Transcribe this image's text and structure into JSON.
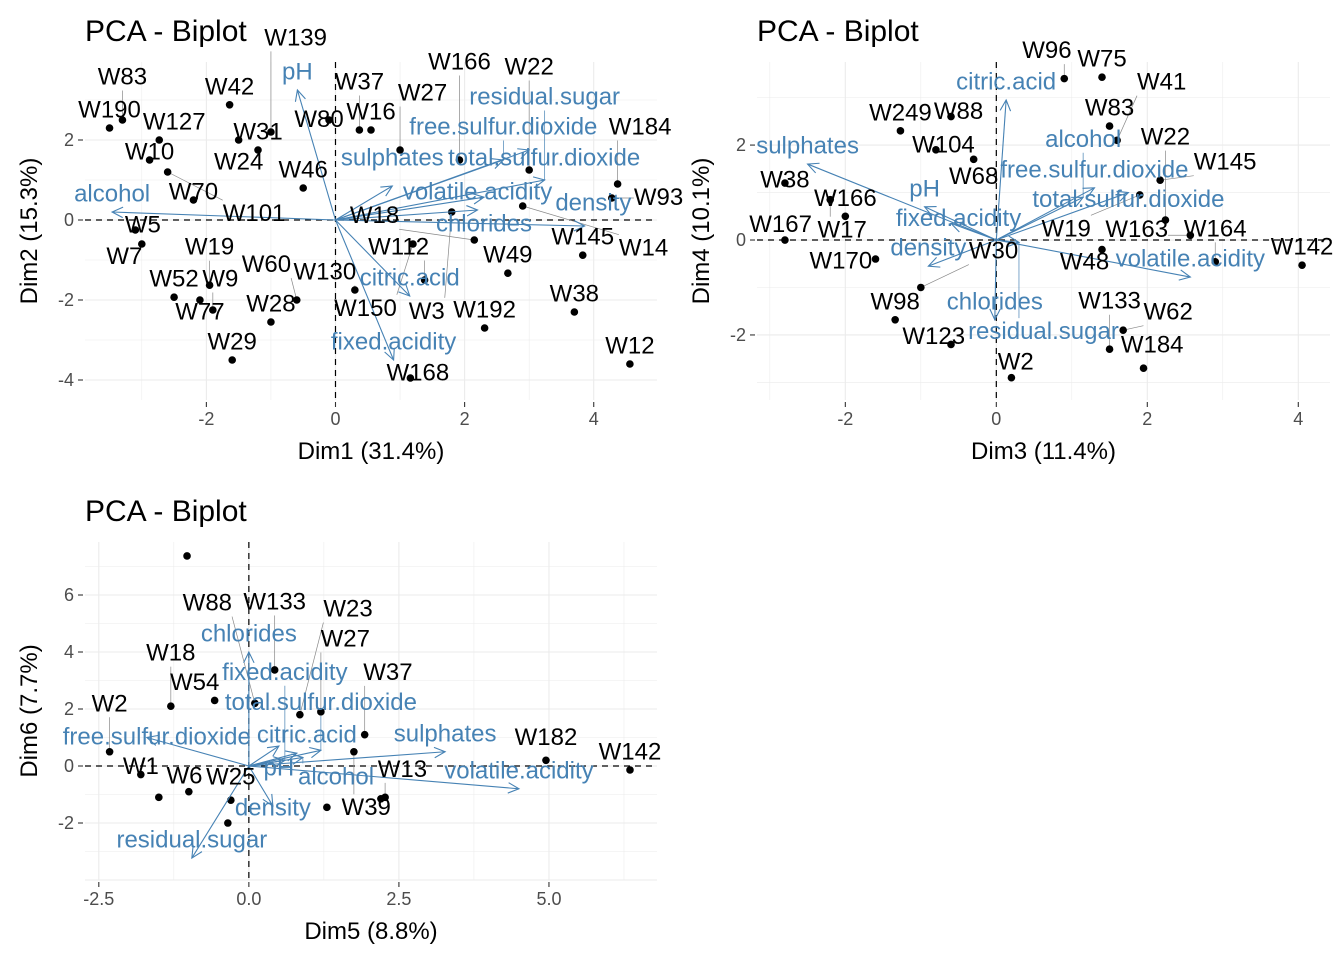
{
  "colors": {
    "points": "#000000",
    "arrows": "#4682B4",
    "grid": "#EBEBEB",
    "ticks": "#4D4D4D"
  },
  "chart_data": [
    {
      "type": "scatter",
      "title": "PCA - Biplot",
      "xlabel": "Dim1 (31.4%)",
      "ylabel": "Dim2 (15.3%)",
      "xlim": [
        -3.88,
        4.98
      ],
      "ylim": [
        -4.5,
        3.95
      ],
      "xticks": [
        {
          "v": -2,
          "label": "-2"
        },
        {
          "v": 0,
          "label": "0"
        },
        {
          "v": 2,
          "label": "2"
        },
        {
          "v": 4,
          "label": "4"
        }
      ],
      "yticks": [
        {
          "v": -4,
          "label": "-4"
        },
        {
          "v": -2,
          "label": "-2"
        },
        {
          "v": 0,
          "label": "0"
        },
        {
          "v": 2,
          "label": "2"
        }
      ],
      "grid": true,
      "points": [
        {
          "label": "W12",
          "x": 4.56,
          "y": -3.6
        },
        {
          "label": "W38",
          "x": 3.7,
          "y": -2.3
        },
        {
          "label": "W192",
          "x": 2.31,
          "y": -2.7
        },
        {
          "label": "W168",
          "x": 1.16,
          "y": -3.95
        },
        {
          "label": "W49",
          "x": 2.67,
          "y": -1.33
        },
        {
          "label": "W145",
          "x": 3.83,
          "y": -0.88
        },
        {
          "label": "W93",
          "x": 4.28,
          "y": 0.55
        },
        {
          "label": "W184",
          "x": 4.37,
          "y": 0.9
        },
        {
          "label": "W112",
          "x": 1.38,
          "y": -1.5
        },
        {
          "label": "W130",
          "x": 0.3,
          "y": -1.75
        },
        {
          "label": "W29",
          "x": -1.6,
          "y": -3.5
        },
        {
          "label": "W28",
          "x": -1.0,
          "y": -2.55
        },
        {
          "label": "W52",
          "x": -2.5,
          "y": -1.93
        },
        {
          "label": "W19",
          "x": -1.95,
          "y": -1.63
        },
        {
          "label": "W16",
          "x": 0.55,
          "y": 2.25
        },
        {
          "label": "W42",
          "x": -1.64,
          "y": 2.88
        },
        {
          "label": "W190",
          "x": -3.5,
          "y": 2.3
        },
        {
          "label": "W83",
          "x": -3.3,
          "y": 2.5
        },
        {
          "label": "W127",
          "x": -2.73,
          "y": 2.0
        },
        {
          "label": "W27",
          "x": 1.0,
          "y": 1.75
        },
        {
          "label": "W166",
          "x": 1.92,
          "y": 1.5
        },
        {
          "label": "W22",
          "x": 3.0,
          "y": 1.25
        },
        {
          "label": "W10",
          "x": -2.88,
          "y": 1.5
        },
        {
          "label": "W5",
          "x": -3.1,
          "y": -0.25
        },
        {
          "label": "W7",
          "x": -3.0,
          "y": -0.6
        },
        {
          "label": "W77",
          "x": -2.1,
          "y": -2.0
        },
        {
          "label": "W9",
          "x": -1.9,
          "y": -2.25
        },
        {
          "label": "W37",
          "x": 0.37,
          "y": 2.25
        },
        {
          "label": "W80",
          "x": -0.1,
          "y": 2.5
        },
        {
          "label": "W31",
          "x": -1.2,
          "y": 1.75
        },
        {
          "label": "W18",
          "x": 2.15,
          "y": -0.5
        },
        {
          "label": "W24",
          "x": -1.5,
          "y": 2.0
        },
        {
          "label": "W60",
          "x": -0.6,
          "y": -2.0
        },
        {
          "label": "W3",
          "x": 1.8,
          "y": 0.2
        },
        {
          "label": "W14",
          "x": 2.9,
          "y": 0.35
        },
        {
          "label": "W46",
          "x": -0.5,
          "y": 0.8
        },
        {
          "label": "W70",
          "x": -2.2,
          "y": 0.5
        },
        {
          "label": "W101",
          "x": -2.6,
          "y": 1.2
        },
        {
          "label": "W139",
          "x": -1.0,
          "y": 2.2
        },
        {
          "label": "W150",
          "x": 1.2,
          "y": -0.6
        }
      ],
      "arrows": [
        {
          "label": "pH",
          "x": -0.59,
          "y": 3.25
        },
        {
          "label": "alcohol",
          "x": -3.46,
          "y": 0.2
        },
        {
          "label": "volatile.acidity",
          "x": 2.2,
          "y": 0.25
        },
        {
          "label": "sulphates",
          "x": 0.88,
          "y": 0.85
        },
        {
          "label": "free.sulfur.dioxide",
          "x": 2.6,
          "y": 1.5
        },
        {
          "label": "total.sulfur.dioxide",
          "x": 3.0,
          "y": 1.75
        },
        {
          "label": "residual.sugar",
          "x": 3.24,
          "y": 1.0
        },
        {
          "label": "chlorides",
          "x": 2.3,
          "y": 0.57
        },
        {
          "label": "density",
          "x": 3.86,
          "y": -0.15
        },
        {
          "label": "citric.acid",
          "x": 1.15,
          "y": -1.9
        },
        {
          "label": "fixed.acidity",
          "x": 0.9,
          "y": -3.5
        }
      ]
    },
    {
      "type": "scatter",
      "title": "PCA - Biplot",
      "xlabel": "Dim3 (11.4%)",
      "ylabel": "Dim4 (10.1%)",
      "xlim": [
        -3.17,
        4.42
      ],
      "ylim": [
        -3.37,
        3.75
      ],
      "xticks": [
        {
          "v": -2,
          "label": "-2"
        },
        {
          "v": 0,
          "label": "0"
        },
        {
          "v": 2,
          "label": "2"
        },
        {
          "v": 4,
          "label": "4"
        }
      ],
      "yticks": [
        {
          "v": -2,
          "label": "-2"
        },
        {
          "v": 0,
          "label": "0"
        },
        {
          "v": 2,
          "label": "2"
        }
      ],
      "grid": true,
      "points": [
        {
          "label": "W142",
          "x": 4.05,
          "y": -0.53
        },
        {
          "label": "W164",
          "x": 2.9,
          "y": -0.46
        },
        {
          "label": "W163",
          "x": 2.57,
          "y": 0.1
        },
        {
          "label": "W22",
          "x": 2.24,
          "y": 0.42
        },
        {
          "label": "W184",
          "x": 1.95,
          "y": -2.7
        },
        {
          "label": "W133",
          "x": 1.5,
          "y": -2.3
        },
        {
          "label": "W62",
          "x": 1.68,
          "y": -1.9
        },
        {
          "label": "W2",
          "x": 0.2,
          "y": -2.9
        },
        {
          "label": "W123",
          "x": -0.6,
          "y": -2.2
        },
        {
          "label": "W98",
          "x": -1.34,
          "y": -1.68
        },
        {
          "label": "W75",
          "x": 1.4,
          "y": 3.43
        },
        {
          "label": "W88",
          "x": -0.6,
          "y": 2.6
        },
        {
          "label": "W249",
          "x": -1.27,
          "y": 2.3
        },
        {
          "label": "W83",
          "x": 1.5,
          "y": 2.4
        },
        {
          "label": "W41",
          "x": 1.6,
          "y": 2.1
        },
        {
          "label": "W145",
          "x": 2.17,
          "y": 1.26
        },
        {
          "label": "W166",
          "x": -2.0,
          "y": 0.5
        },
        {
          "label": "W167",
          "x": -2.8,
          "y": 0.0
        },
        {
          "label": "W38",
          "x": -2.8,
          "y": 1.2
        },
        {
          "label": "W17",
          "x": -2.2,
          "y": 0.85
        },
        {
          "label": "W170",
          "x": -1.6,
          "y": -0.4
        },
        {
          "label": "W19",
          "x": 1.9,
          "y": 0.95
        },
        {
          "label": "W96",
          "x": 0.9,
          "y": 3.4
        },
        {
          "label": "W104",
          "x": -0.8,
          "y": 1.9
        },
        {
          "label": "W68",
          "x": -0.3,
          "y": 1.7
        },
        {
          "label": "W30",
          "x": -1.0,
          "y": -1.0
        },
        {
          "label": "W48",
          "x": 1.4,
          "y": -0.2
        }
      ],
      "arrows": [
        {
          "label": "citric.acid",
          "x": 0.13,
          "y": 2.95
        },
        {
          "label": "sulphates",
          "x": -2.5,
          "y": 1.6
        },
        {
          "label": "free.sulfur.dioxide",
          "x": 1.3,
          "y": 1.1
        },
        {
          "label": "total.sulfur.dioxide",
          "x": 1.75,
          "y": 1.0
        },
        {
          "label": "alcohol",
          "x": 1.15,
          "y": 0.9
        },
        {
          "label": "pH",
          "x": -0.95,
          "y": 0.7
        },
        {
          "label": "fixed.acidity",
          "x": -0.6,
          "y": 0.35
        },
        {
          "label": "volatile.acidity",
          "x": 2.57,
          "y": -0.78
        },
        {
          "label": "chlorides",
          "x": -0.02,
          "y": -1.68
        },
        {
          "label": "density",
          "x": -0.9,
          "y": -0.55
        },
        {
          "label": "residual.sugar",
          "x": 0.3,
          "y": -0.05
        }
      ]
    },
    {
      "type": "scatter",
      "title": "PCA - Biplot",
      "xlabel": "Dim5 (8.8%)",
      "ylabel": "Dim6 (7.7%)",
      "xlim": [
        -2.73,
        6.8
      ],
      "ylim": [
        -4.0,
        7.86
      ],
      "xticks": [
        {
          "v": -2.5,
          "label": "-2.5"
        },
        {
          "v": 0,
          "label": "0.0"
        },
        {
          "v": 2.5,
          "label": "2.5"
        },
        {
          "v": 5,
          "label": "5.0"
        }
      ],
      "yticks": [
        {
          "v": -2,
          "label": "-2"
        },
        {
          "v": 0,
          "label": "0"
        },
        {
          "v": 2,
          "label": "2"
        },
        {
          "v": 4,
          "label": "4"
        },
        {
          "v": 6,
          "label": "6"
        }
      ],
      "grid": true,
      "points": [
        {
          "label": "W142",
          "x": 6.35,
          "y": -0.14
        },
        {
          "label": "W182",
          "x": 4.95,
          "y": 0.2
        },
        {
          "label": "W133",
          "x": 0.43,
          "y": 3.37
        },
        {
          "label": "W13",
          "x": 2.27,
          "y": -1.1
        },
        {
          "label": "W54",
          "x": -0.57,
          "y": 2.3
        },
        {
          "label": "W37",
          "x": 1.93,
          "y": 1.1
        },
        {
          "label": "W27",
          "x": 1.2,
          "y": 1.9
        },
        {
          "label": "W23",
          "x": 0.85,
          "y": 1.8
        },
        {
          "label": "W39",
          "x": 1.75,
          "y": 0.5
        },
        {
          "label": "W2",
          "x": -2.32,
          "y": 0.5
        },
        {
          "label": "W1",
          "x": -1.8,
          "y": -0.3
        },
        {
          "label": "W18",
          "x": -1.3,
          "y": 2.1
        },
        {
          "label": "W25",
          "x": -0.3,
          "y": -1.2
        },
        {
          "label": "W88",
          "x": 0.1,
          "y": 2.2
        },
        {
          "label": "W6",
          "x": -1.0,
          "y": -0.9
        },
        {
          "label": "",
          "x": -1.03,
          "y": 7.37
        },
        {
          "label": "",
          "x": 1.3,
          "y": -1.45
        },
        {
          "label": "",
          "x": 2.2,
          "y": -1.15
        },
        {
          "label": "",
          "x": -0.35,
          "y": -2.0
        },
        {
          "label": "",
          "x": -1.5,
          "y": -1.1
        }
      ],
      "arrows": [
        {
          "label": "chlorides",
          "x": 0.0,
          "y": 4.0
        },
        {
          "label": "residual.sugar",
          "x": -0.95,
          "y": -3.23
        },
        {
          "label": "volatile.acidity",
          "x": 4.5,
          "y": -0.8
        },
        {
          "label": "sulphates",
          "x": 3.27,
          "y": 0.5
        },
        {
          "label": "free.sulfur.dioxide",
          "x": -1.7,
          "y": 1.0
        },
        {
          "label": "total.sulfur.dioxide",
          "x": 1.2,
          "y": 0.55
        },
        {
          "label": "citric.acid",
          "x": 0.8,
          "y": 0.45
        },
        {
          "label": "pH",
          "x": 0.5,
          "y": 0.7
        },
        {
          "label": "alcohol",
          "x": 0.9,
          "y": 0.3
        },
        {
          "label": "density",
          "x": 0.4,
          "y": -1.4
        },
        {
          "label": "fixed.acidity",
          "x": 0.6,
          "y": 0.2
        }
      ]
    }
  ]
}
